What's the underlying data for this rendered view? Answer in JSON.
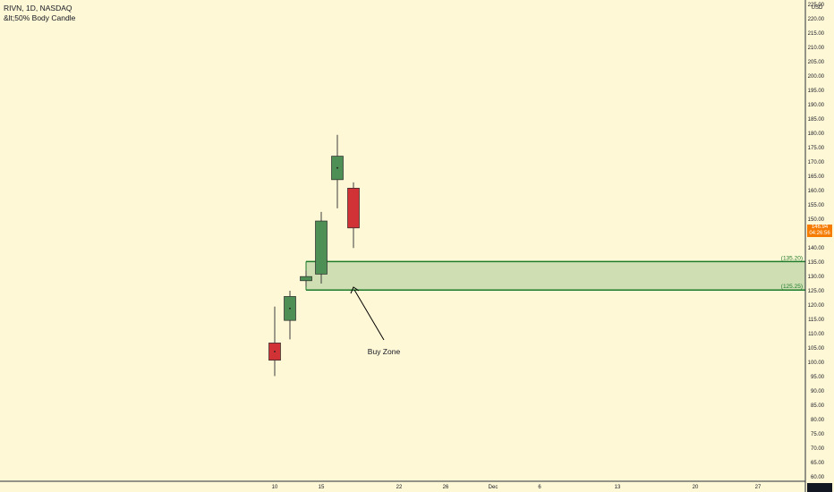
{
  "header": {
    "title": "RIVN, 1D, NASDAQ",
    "indicator": "&lt;50% Body Candle"
  },
  "price_label": {
    "price": "146.94",
    "countdown": "04:26:56"
  },
  "colors": {
    "background": "#fff8d6",
    "bull": "#4e8f55",
    "bear": "#d03236",
    "zone_fill": "#cfdfb3",
    "zone_line": "#1e7b2a",
    "price_tag": "#f57c00"
  },
  "chart_data": {
    "type": "candlestick",
    "title": "RIVN, 1D, NASDAQ",
    "currency": "USD",
    "ylim": [
      60,
      225
    ],
    "y_ticks": [
      60,
      65,
      70,
      75,
      80,
      85,
      90,
      95,
      100,
      105,
      110,
      115,
      120,
      125,
      130,
      135,
      140,
      145,
      150,
      155,
      160,
      165,
      170,
      175,
      180,
      185,
      190,
      195,
      200,
      205,
      210,
      215,
      220,
      225
    ],
    "x_tick_labels": [
      "10",
      "15",
      "22",
      "26",
      "Dec",
      "6",
      "13",
      "20",
      "27"
    ],
    "candles": [
      {
        "date": "Nov 10",
        "open": 106.75,
        "high": 119.46,
        "low": 95.2,
        "close": 100.73
      },
      {
        "date": "Nov 11",
        "open": 114.63,
        "high": 125.0,
        "low": 108.01,
        "close": 122.99
      },
      {
        "date": "Nov 12",
        "open": 128.5,
        "high": 132.0,
        "low": 126.5,
        "close": 129.95
      },
      {
        "date": "Nov 15",
        "open": 130.8,
        "high": 152.53,
        "low": 127.51,
        "close": 149.36
      },
      {
        "date": "Nov 16",
        "open": 163.8,
        "high": 179.47,
        "low": 153.78,
        "close": 172.01
      },
      {
        "date": "Nov 17",
        "open": 160.83,
        "high": 162.85,
        "low": 139.94,
        "close": 146.94
      }
    ],
    "zone": {
      "label": "Buy Zone",
      "top": 135.2,
      "bottom": 125.25,
      "start": "Nov 12",
      "top_label": "(135.20)",
      "bottom_label": "(125.25)"
    }
  }
}
